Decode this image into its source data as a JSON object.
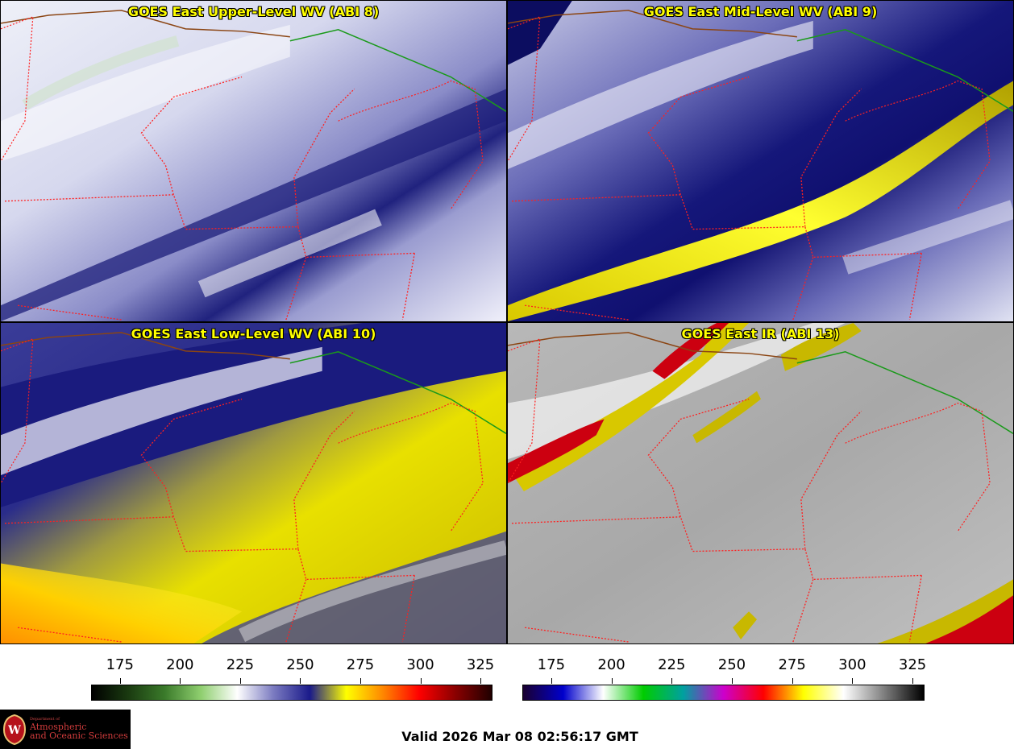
{
  "panels": [
    {
      "title": "GOES East Upper-Level WV (ABI 8)",
      "palette": "wv"
    },
    {
      "title": "GOES East Mid-Level WV (ABI 9)",
      "palette": "wv"
    },
    {
      "title": "GOES East Low-Level WV (ABI 10)",
      "palette": "wv"
    },
    {
      "title": "GOES East IR (ABI 13)",
      "palette": "ir"
    }
  ],
  "colorbars": {
    "wv": {
      "ticks": [
        "175",
        "200",
        "225",
        "250",
        "275",
        "300",
        "325"
      ],
      "tick_values": [
        175,
        200,
        225,
        250,
        275,
        300,
        325
      ],
      "range": [
        163,
        330
      ],
      "colors": [
        "#000000",
        "#1a3a10",
        "#3a7a2a",
        "#8fcf6f",
        "#ffffff",
        "#7a7ac0",
        "#1a1a8a",
        "#ffff00",
        "#ff8800",
        "#ff0000",
        "#8a0000",
        "#200000"
      ]
    },
    "ir": {
      "ticks": [
        "175",
        "200",
        "225",
        "250",
        "275",
        "300",
        "325"
      ],
      "tick_values": [
        175,
        200,
        225,
        250,
        275,
        300,
        325
      ],
      "range": [
        163,
        330
      ],
      "colors": [
        "#1a0030",
        "#0000cc",
        "#ffffff",
        "#00cc00",
        "#00a0a0",
        "#cc00cc",
        "#ff0000",
        "#ffff00",
        "#ffffff",
        "#808080",
        "#000000"
      ]
    }
  },
  "logo": {
    "line1": "Department of",
    "line2": "Atmospheric",
    "line3": "and Oceanic Sciences"
  },
  "valid_text": "Valid 2026 Mar 08 02:56:17 GMT",
  "colors": {
    "border_state": "#ff2020",
    "border_country": "#8b4513",
    "border_province": "#1a9a1a",
    "title": "#ffff00"
  }
}
